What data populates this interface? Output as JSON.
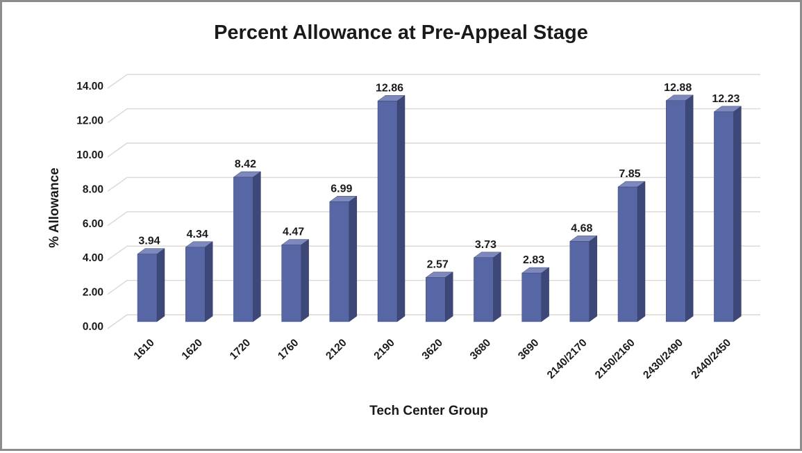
{
  "chart_data": {
    "type": "bar",
    "title": "Percent Allowance at Pre-Appeal Stage",
    "xlabel": "Tech Center Group",
    "ylabel": "% Allowance",
    "categories": [
      "1610",
      "1620",
      "1720",
      "1760",
      "2120",
      "2190",
      "3620",
      "3680",
      "3690",
      "2140/2170",
      "2150/2160",
      "2430/2490",
      "2440/2450"
    ],
    "values": [
      3.94,
      4.34,
      8.42,
      4.47,
      6.99,
      12.86,
      2.57,
      3.73,
      2.83,
      4.68,
      7.85,
      12.88,
      12.23
    ],
    "value_labels": [
      "3.94",
      "4.34",
      "8.42",
      "4.47",
      "6.99",
      "12.86",
      "2.57",
      "3.73",
      "2.83",
      "4.68",
      "7.85",
      "12.88",
      "12.23"
    ],
    "y_ticks": [
      "0.00",
      "2.00",
      "4.00",
      "6.00",
      "8.00",
      "10.00",
      "12.00",
      "14.00"
    ],
    "ylim": [
      0,
      14
    ],
    "y_tick_step": 2,
    "grid": true,
    "projection": "3d-oblique",
    "legend": "none",
    "colors": {
      "bar_front": "#5767A6",
      "bar_side": "#3D4879",
      "bar_top": "#7D89BC",
      "bar_edge": "#333D66",
      "gridline": "#DDD6D2",
      "text": "#1A1A1A",
      "frame_border": "#8C8C8C",
      "background": "#FFFFFF"
    }
  }
}
